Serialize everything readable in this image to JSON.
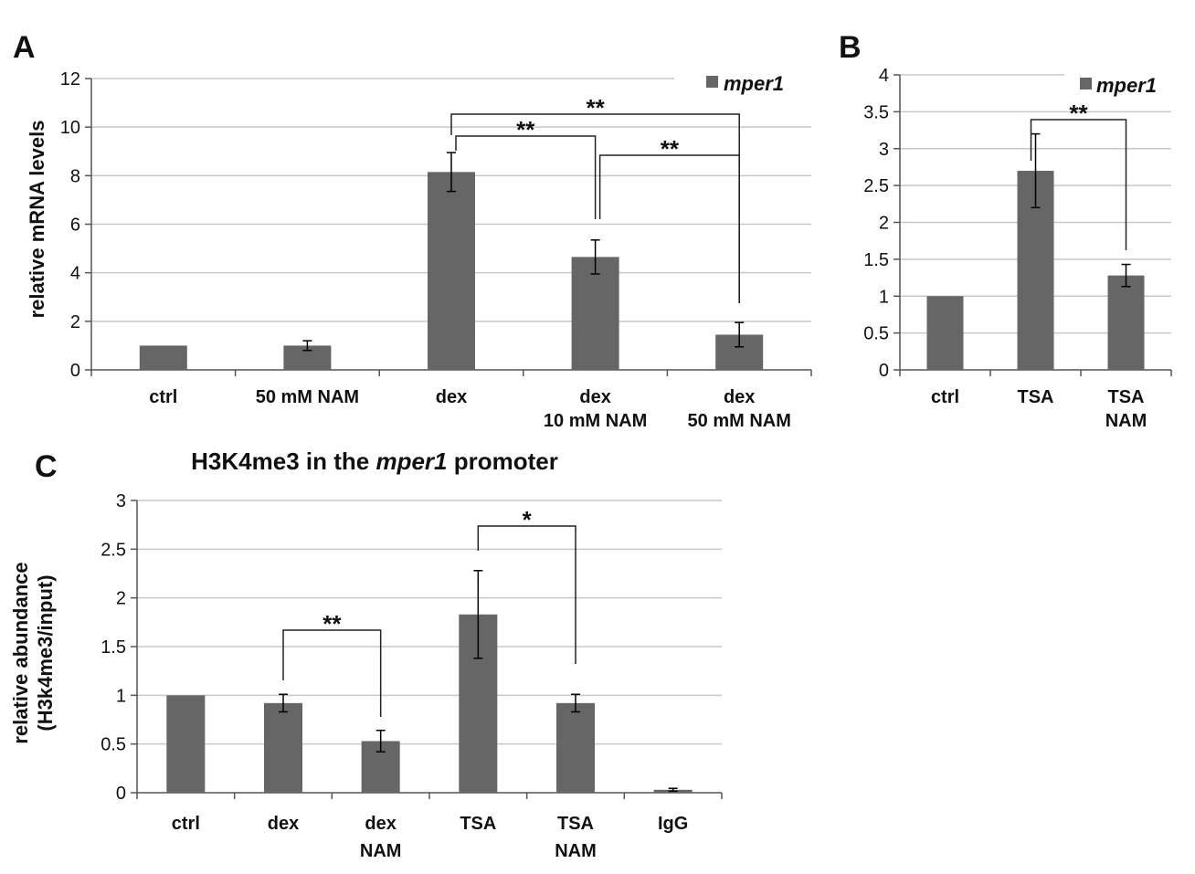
{
  "colors": {
    "bar": "#666666",
    "grid": "#c8c8c8",
    "axis": "#555555",
    "text": "#111111"
  },
  "chart_data": [
    {
      "panel": "A",
      "type": "bar",
      "title": "",
      "ylabel": "relative mRNA levels",
      "xlabel": "",
      "ylim": [
        0,
        12
      ],
      "yticks": [
        "0",
        "2",
        "4",
        "6",
        "8",
        "10",
        "12"
      ],
      "grid": true,
      "legend": {
        "position": "top-right",
        "entries": [
          "mper1"
        ]
      },
      "categories": [
        [
          "ctrl"
        ],
        [
          "50 mM NAM"
        ],
        [
          "dex"
        ],
        [
          "dex",
          "10 mM NAM"
        ],
        [
          "dex",
          "50 mM NAM"
        ]
      ],
      "series": [
        {
          "name": "mper1",
          "values": [
            1.0,
            1.0,
            8.15,
            4.65,
            1.45
          ],
          "errors": [
            0,
            0.2,
            0.8,
            0.7,
            0.5
          ]
        }
      ],
      "significance": [
        {
          "from": 2,
          "to": 3,
          "label": "**"
        },
        {
          "from": 3,
          "to": 4,
          "label": "**"
        },
        {
          "from": 2,
          "to": 4,
          "label": "**"
        }
      ]
    },
    {
      "panel": "B",
      "type": "bar",
      "title": "",
      "ylabel": "",
      "xlabel": "",
      "ylim": [
        0,
        4
      ],
      "yticks": [
        "0",
        "0.5",
        "1",
        "1.5",
        "2",
        "2.5",
        "3",
        "3.5",
        "4"
      ],
      "grid": true,
      "legend": {
        "position": "top-right",
        "entries": [
          "mper1"
        ]
      },
      "categories": [
        [
          "ctrl"
        ],
        [
          "TSA"
        ],
        [
          "TSA",
          "NAM"
        ]
      ],
      "series": [
        {
          "name": "mper1",
          "values": [
            1.0,
            2.7,
            1.28
          ],
          "errors": [
            0,
            0.5,
            0.15
          ]
        }
      ],
      "significance": [
        {
          "from": 1,
          "to": 2,
          "label": "**"
        }
      ]
    },
    {
      "panel": "C",
      "type": "bar",
      "title": "H3K4me3 in the mper1 promoter",
      "title_parts": [
        "H3K4me3 in the ",
        "mper1",
        " promoter"
      ],
      "ylabel": "relative abundance",
      "ylabel2": "(H3k4me3/input)",
      "xlabel": "",
      "ylim": [
        0,
        3
      ],
      "yticks": [
        "0",
        "0.5",
        "1",
        "1.5",
        "2",
        "2.5",
        "3"
      ],
      "grid": true,
      "categories": [
        [
          "ctrl"
        ],
        [
          "dex"
        ],
        [
          "dex",
          "NAM"
        ],
        [
          "TSA"
        ],
        [
          "TSA",
          "NAM"
        ],
        [
          "IgG"
        ]
      ],
      "series": [
        {
          "values": [
            1.0,
            0.92,
            0.53,
            1.83,
            0.92,
            0.03
          ],
          "errors": [
            0,
            0.09,
            0.11,
            0.45,
            0.09,
            0.015
          ]
        }
      ],
      "significance": [
        {
          "from": 1,
          "to": 2,
          "label": "**"
        },
        {
          "from": 3,
          "to": 4,
          "label": "*"
        }
      ]
    }
  ]
}
